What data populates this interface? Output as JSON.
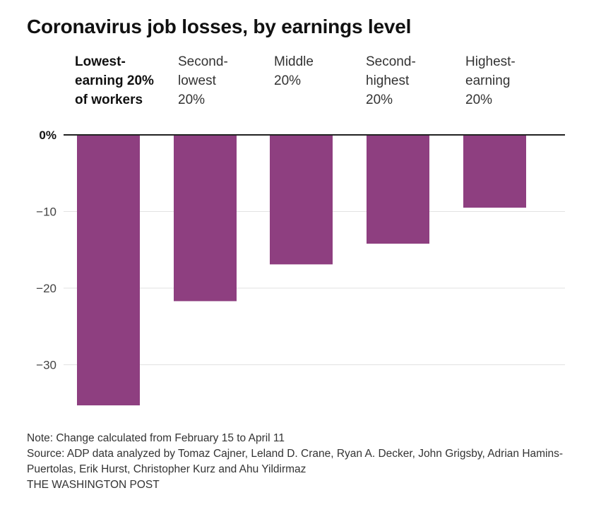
{
  "title": "Coronavirus job losses, by earnings level",
  "chart_data": {
    "type": "bar",
    "categories": [
      "Lowest-\nearning 20%\nof workers",
      "Second-\nlowest\n20%",
      "Middle\n20%",
      "Second-\nhighest\n20%",
      "Highest-\nearning\n20%"
    ],
    "values": [
      -35.3,
      -21.7,
      -16.9,
      -14.2,
      -9.5
    ],
    "ylim": [
      -35.3,
      0
    ],
    "yticks": [
      0,
      -10,
      -20,
      -30
    ],
    "ytick_labels": [
      "0%",
      "−10",
      "−20",
      "−30"
    ],
    "grid": true,
    "bar_color": "#8e3f80",
    "highlighted_category_index": 0,
    "xlabel": "",
    "ylabel": ""
  },
  "footer": {
    "note": "Note: Change calculated from February 15 to April 11",
    "source": "Source: ADP data analyzed by Tomaz Cajner, Leland D. Crane, Ryan A. Decker, John Grigsby, Adrian Hamins-Puertolas, Erik Hurst, Christopher Kurz and Ahu Yildirmaz",
    "credit": "THE WASHINGTON POST"
  }
}
